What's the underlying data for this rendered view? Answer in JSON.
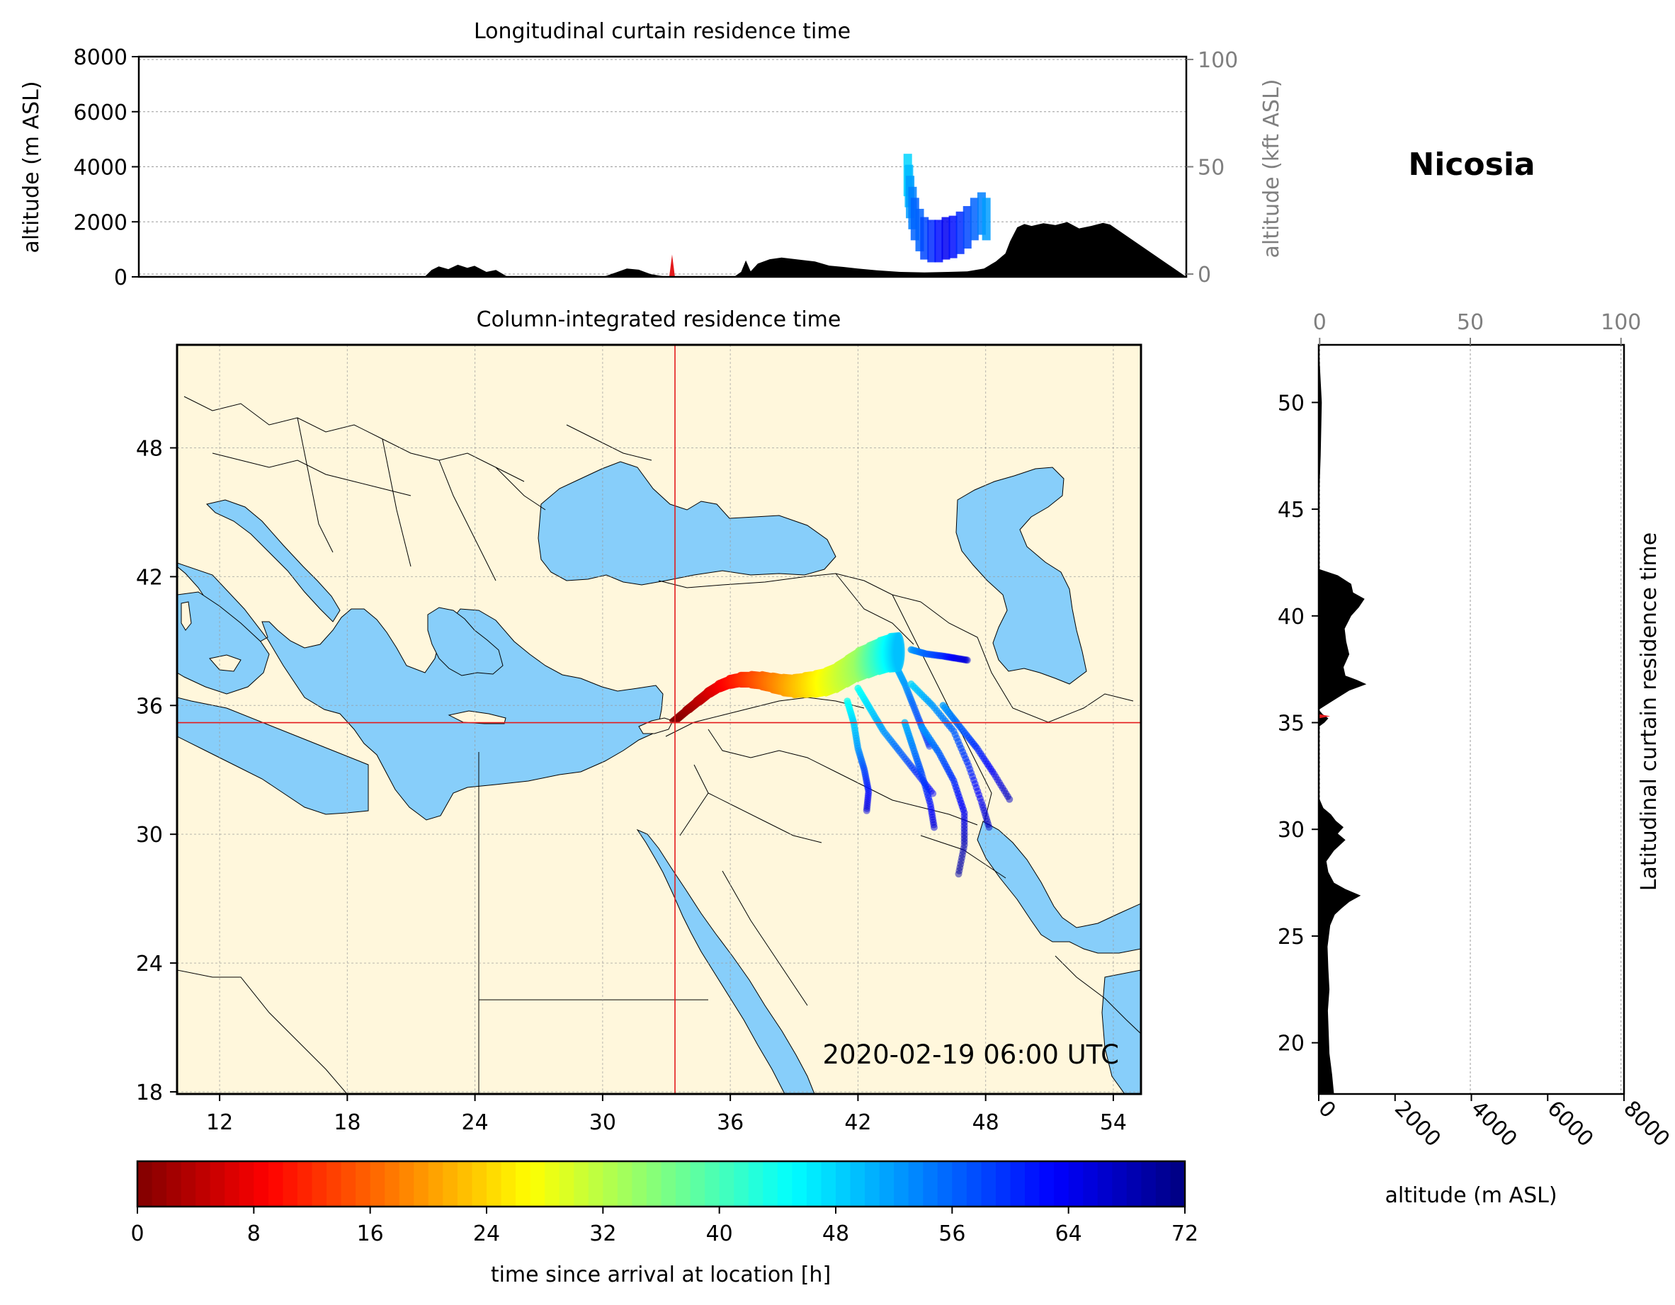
{
  "figure": {
    "title": "Nicosia"
  },
  "colors": {
    "land": "#fff7dc",
    "water": "#87cefa",
    "terrain": "#000000",
    "crosshair": "#e31a1c",
    "grid": "#9a9a9a",
    "secondary_axis": "#7f7f7f"
  },
  "chart_data": [
    {
      "type": "area",
      "name": "top",
      "title": "Longitudinal curtain residence time",
      "ylabel": "altitude (m ASL)",
      "ylabel_right": "altitude (kft ASL)",
      "xlim": [
        11,
        55
      ],
      "ylim": [
        0,
        8000
      ],
      "yticks": [
        0,
        2000,
        4000,
        6000,
        8000
      ],
      "yticks_right": [
        0,
        50,
        100
      ],
      "ylim_right": [
        -1.3,
        101.3
      ],
      "terrain_profile": {
        "x": [
          11,
          23.0,
          23.3,
          23.6,
          24.0,
          24.4,
          24.8,
          25.1,
          25.6,
          26.0,
          26.5,
          30.5,
          31.0,
          31.5,
          32.0,
          32.5,
          33.2,
          33.8,
          36.0,
          36.3,
          36.5,
          36.7,
          37.0,
          37.5,
          38.0,
          38.6,
          39.4,
          40.0,
          40.6,
          41.2,
          42.0,
          43.0,
          44.0,
          45.0,
          45.8,
          46.5,
          47.0,
          47.4,
          47.6,
          47.9,
          48.2,
          48.5,
          49.0,
          49.5,
          50.0,
          50.5,
          51.0,
          51.5,
          51.8,
          55
        ],
        "y": [
          0,
          0,
          250,
          380,
          280,
          440,
          330,
          400,
          180,
          250,
          0,
          0,
          150,
          300,
          260,
          100,
          0,
          0,
          0,
          180,
          600,
          200,
          480,
          640,
          700,
          640,
          560,
          410,
          360,
          300,
          240,
          180,
          160,
          180,
          200,
          300,
          560,
          850,
          1300,
          1800,
          1920,
          1850,
          1950,
          1880,
          1990,
          1760,
          1850,
          1960,
          1900,
          0
        ]
      },
      "plume_points": {
        "x": [
          43.3,
          43.35,
          43.4,
          43.5,
          43.6,
          43.8,
          44.0,
          44.3,
          44.6,
          44.9,
          45.2,
          45.5,
          45.8,
          46.1,
          46.4,
          46.6
        ],
        "y": [
          3700,
          3300,
          2900,
          2500,
          2100,
          1700,
          1400,
          1300,
          1300,
          1400,
          1450,
          1600,
          1800,
          2100,
          2300,
          2100
        ],
        "t": [
          48,
          50,
          52,
          54,
          56,
          56,
          58,
          60,
          62,
          64,
          62,
          60,
          58,
          56,
          54,
          52
        ]
      },
      "release_marker": {
        "x": 33.4,
        "y": 300
      },
      "reference_lines_kft": [
        0,
        100
      ]
    },
    {
      "type": "scatter",
      "name": "map",
      "title": "Column-integrated residence time",
      "xlim": [
        10,
        55.3
      ],
      "ylim": [
        17.9,
        52.8
      ],
      "xticks": [
        12,
        18,
        24,
        30,
        36,
        42,
        48,
        54
      ],
      "yticks": [
        18,
        24,
        30,
        36,
        42,
        48
      ],
      "timestamp": "2020-02-19 06:00 UTC",
      "release_point": {
        "lon": 33.4,
        "lat": 35.2
      },
      "trajectory": {
        "lon": [
          33.4,
          34.0,
          34.5,
          35.0,
          35.5,
          36.0,
          36.5,
          37.0,
          37.5,
          38.0,
          38.5,
          39.0,
          39.5,
          40.0,
          40.5,
          41.0,
          41.5,
          42.0,
          42.5,
          43.0,
          43.5,
          44.0
        ],
        "lat": [
          35.3,
          35.8,
          36.2,
          36.6,
          36.9,
          37.1,
          37.2,
          37.2,
          37.15,
          37.05,
          36.95,
          36.9,
          36.95,
          37.0,
          37.1,
          37.3,
          37.6,
          37.9,
          38.1,
          38.3,
          38.45,
          38.5
        ],
        "t": [
          0,
          2,
          4,
          6,
          8,
          10,
          12,
          14,
          16,
          18,
          20,
          22,
          24,
          26,
          28,
          30,
          32,
          34,
          38,
          42,
          46,
          50
        ]
      },
      "plume_fans": [
        {
          "lon": [
            43.5,
            43.8,
            44.2,
            44.6,
            45.0,
            45.4
          ],
          "lat": [
            38.3,
            37.8,
            37.0,
            36.0,
            35.0,
            34.0
          ],
          "t": [
            48,
            50,
            52,
            56,
            58,
            60
          ]
        },
        {
          "lon": [
            42.0,
            42.6,
            43.2,
            44.0,
            44.8,
            45.6
          ],
          "lat": [
            36.8,
            35.8,
            34.8,
            33.8,
            32.8,
            31.8
          ],
          "t": [
            44,
            48,
            52,
            56,
            60,
            64
          ]
        },
        {
          "lon": [
            41.5,
            41.8,
            42.0,
            42.3,
            42.5,
            42.4
          ],
          "lat": [
            36.2,
            35.2,
            34.0,
            33.0,
            32.0,
            31.0
          ],
          "t": [
            44,
            48,
            52,
            58,
            62,
            66
          ]
        },
        {
          "lon": [
            44.5,
            45.5,
            46.5,
            47.2,
            47.8,
            48.2
          ],
          "lat": [
            37.0,
            36.0,
            34.8,
            33.2,
            31.5,
            30.2
          ],
          "t": [
            48,
            52,
            56,
            60,
            64,
            68
          ]
        },
        {
          "lon": [
            45.0,
            45.8,
            46.5,
            47.0,
            47.0,
            46.7
          ],
          "lat": [
            35.0,
            33.8,
            32.5,
            31.0,
            29.5,
            28.0
          ],
          "t": [
            52,
            56,
            60,
            64,
            68,
            70
          ]
        },
        {
          "lon": [
            44.2,
            44.6,
            45.0,
            45.4,
            45.6
          ],
          "lat": [
            35.2,
            34.0,
            32.8,
            31.4,
            30.2
          ],
          "t": [
            50,
            54,
            58,
            62,
            66
          ]
        },
        {
          "lon": [
            46.0,
            46.8,
            47.6,
            48.4,
            49.2
          ],
          "lat": [
            36.0,
            35.0,
            34.0,
            32.8,
            31.5
          ],
          "t": [
            52,
            56,
            60,
            64,
            68
          ]
        },
        {
          "lon": [
            44.5,
            45.2,
            46.0,
            46.6,
            47.2
          ],
          "lat": [
            38.6,
            38.4,
            38.3,
            38.2,
            38.1
          ],
          "t": [
            52,
            56,
            60,
            64,
            66
          ]
        }
      ]
    },
    {
      "type": "area",
      "name": "right",
      "title": "Latitudinal curtain residence time",
      "xlabel": "altitude (m ASL)",
      "xlim": [
        0,
        8000
      ],
      "ylim": [
        17.6,
        52.7
      ],
      "xticks": [
        0,
        2000,
        4000,
        6000,
        8000
      ],
      "xticks_top": [
        0,
        50,
        100
      ],
      "xlim_top": [
        -0.3,
        101.0
      ],
      "yticks": [
        20,
        25,
        30,
        35,
        40,
        45,
        50
      ],
      "terrain_profile": {
        "lat": [
          17.6,
          18.5,
          19.5,
          20.5,
          21.5,
          22.5,
          23.5,
          24.5,
          25.5,
          26.0,
          26.3,
          26.6,
          26.9,
          27.2,
          27.5,
          28.0,
          28.5,
          29.0,
          29.5,
          29.8,
          30.1,
          30.4,
          30.7,
          31.0,
          31.5,
          34.8,
          35.0,
          35.2,
          35.4,
          35.6,
          36.0,
          36.5,
          36.8,
          37.0,
          37.2,
          37.6,
          38.2,
          38.8,
          39.4,
          40.0,
          40.4,
          40.8,
          41.1,
          41.5,
          41.9,
          42.2,
          43.0,
          45.0,
          47.5,
          50.0,
          52.7
        ],
        "alt": [
          400,
          350,
          280,
          260,
          240,
          280,
          250,
          230,
          300,
          420,
          600,
          800,
          1100,
          700,
          400,
          250,
          200,
          400,
          700,
          500,
          650,
          450,
          320,
          120,
          0,
          0,
          150,
          250,
          100,
          0,
          350,
          800,
          1250,
          1000,
          700,
          650,
          800,
          720,
          680,
          850,
          1050,
          1200,
          900,
          850,
          500,
          0,
          0,
          0,
          50,
          80,
          0
        ]
      },
      "release_marker": {
        "lat": 35.3,
        "alt": 300
      },
      "reference_lines_kft": [
        0,
        100
      ]
    },
    {
      "type": "heatmap",
      "name": "colorbar",
      "label": "time since arrival at location [h]",
      "range": [
        0,
        72
      ],
      "ticks": [
        0,
        8,
        16,
        24,
        32,
        40,
        48,
        56,
        64,
        72
      ],
      "levels": 72,
      "colormap": "jet_r"
    }
  ]
}
